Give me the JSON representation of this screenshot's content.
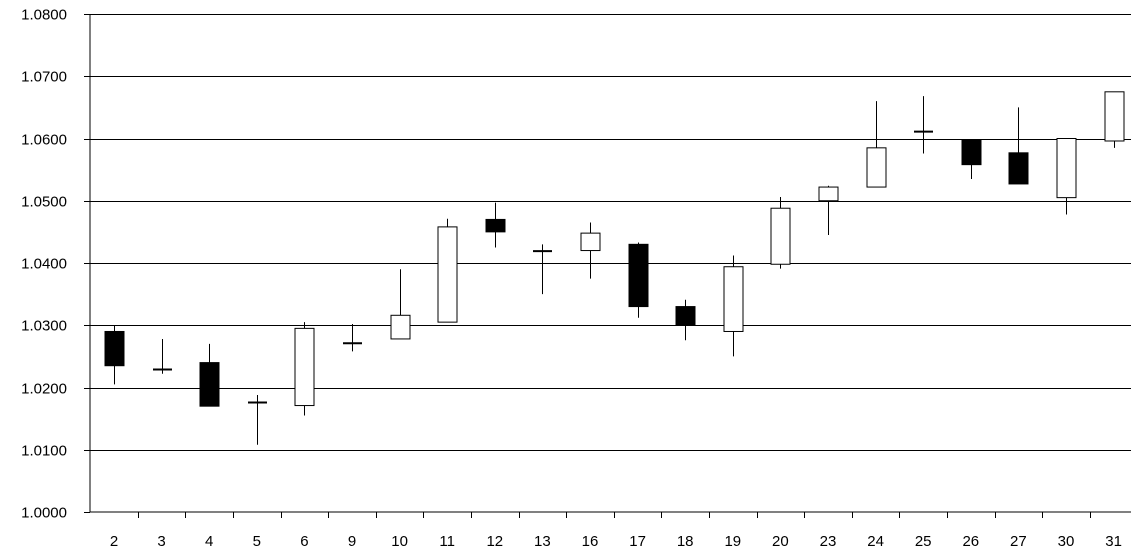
{
  "chart_data": {
    "type": "candlestick",
    "title": "",
    "xlabel": "",
    "ylabel": "",
    "ylim": [
      1.0,
      1.08
    ],
    "y_ticks": [
      "1.0000",
      "1.0100",
      "1.0200",
      "1.0300",
      "1.0400",
      "1.0500",
      "1.0600",
      "1.0700",
      "1.0800"
    ],
    "y_tick_values": [
      1.0,
      1.01,
      1.02,
      1.03,
      1.04,
      1.05,
      1.06,
      1.07,
      1.08
    ],
    "grid": "horizontal",
    "legend": "none",
    "colors": {
      "bull": "#ffffff",
      "bear": "#000000",
      "line": "#000000",
      "grid": "#000000"
    },
    "categories": [
      "2",
      "3",
      "4",
      "5",
      "6",
      "9",
      "10",
      "11",
      "12",
      "13",
      "16",
      "17",
      "18",
      "19",
      "20",
      "23",
      "24",
      "25",
      "26",
      "27",
      "30",
      "31"
    ],
    "candles": [
      {
        "open": 1.029,
        "high": 1.03,
        "low": 1.0205,
        "close": 1.0235
      },
      {
        "open": 1.023,
        "high": 1.0278,
        "low": 1.0222,
        "close": 1.0228
      },
      {
        "open": 1.024,
        "high": 1.027,
        "low": 1.017,
        "close": 1.017
      },
      {
        "open": 1.0177,
        "high": 1.0188,
        "low": 1.0108,
        "close": 1.0175
      },
      {
        "open": 1.0171,
        "high": 1.0305,
        "low": 1.0155,
        "close": 1.0295
      },
      {
        "open": 1.027,
        "high": 1.0302,
        "low": 1.0258,
        "close": 1.0272
      },
      {
        "open": 1.0278,
        "high": 1.039,
        "low": 1.0278,
        "close": 1.0316
      },
      {
        "open": 1.0305,
        "high": 1.0471,
        "low": 1.0305,
        "close": 1.0458
      },
      {
        "open": 1.047,
        "high": 1.0497,
        "low": 1.0425,
        "close": 1.045
      },
      {
        "open": 1.0418,
        "high": 1.043,
        "low": 1.035,
        "close": 1.042
      },
      {
        "open": 1.042,
        "high": 1.0465,
        "low": 1.0375,
        "close": 1.0448
      },
      {
        "open": 1.043,
        "high": 1.0433,
        "low": 1.0312,
        "close": 1.033
      },
      {
        "open": 1.033,
        "high": 1.0341,
        "low": 1.0276,
        "close": 1.03
      },
      {
        "open": 1.029,
        "high": 1.0412,
        "low": 1.025,
        "close": 1.0394
      },
      {
        "open": 1.0398,
        "high": 1.0506,
        "low": 1.0391,
        "close": 1.0488
      },
      {
        "open": 1.05,
        "high": 1.0524,
        "low": 1.0445,
        "close": 1.0522
      },
      {
        "open": 1.0522,
        "high": 1.066,
        "low": 1.0522,
        "close": 1.0585
      },
      {
        "open": 1.0612,
        "high": 1.0668,
        "low": 1.0576,
        "close": 1.061
      },
      {
        "open": 1.0598,
        "high": 1.0598,
        "low": 1.0535,
        "close": 1.0558
      },
      {
        "open": 1.0577,
        "high": 1.065,
        "low": 1.0527,
        "close": 1.0527
      },
      {
        "open": 1.0505,
        "high": 1.06,
        "low": 1.0478,
        "close": 1.06
      },
      {
        "open": 1.0596,
        "high": 1.0675,
        "low": 1.0585,
        "close": 1.0675
      }
    ]
  }
}
